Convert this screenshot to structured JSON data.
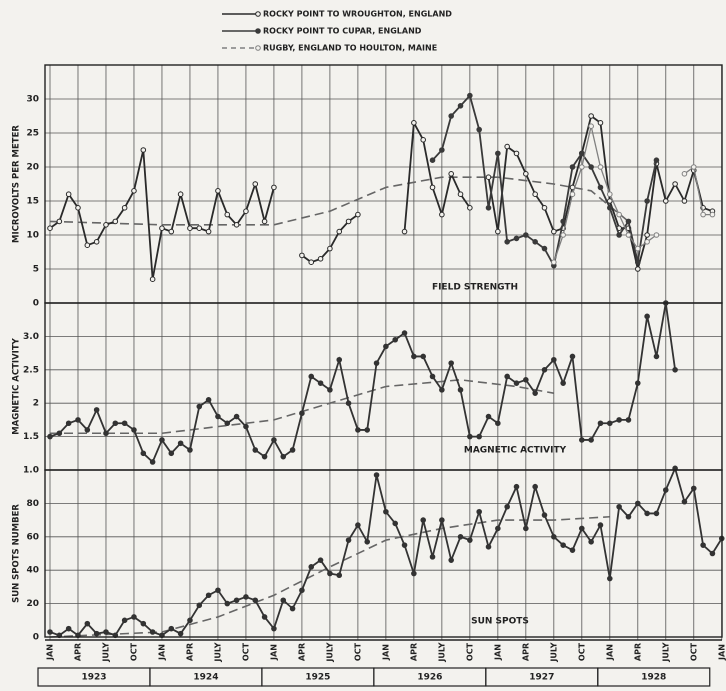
{
  "chart_data": [
    {
      "type": "line",
      "ylabel": "MICROVOLTS PER METER",
      "annotation": "FIELD STRENGTH",
      "ylim": [
        0,
        35
      ],
      "yticks": [
        0,
        5,
        10,
        15,
        20,
        25,
        30
      ],
      "grid": true,
      "legend": "top",
      "series": [
        {
          "name": "ROCKY POINT TO WROUGHTON, ENGLAND",
          "color": "#2a2a2a",
          "style": "solid-open",
          "values": [
            11,
            12,
            16,
            14,
            8.5,
            9,
            11.5,
            12,
            14,
            16.5,
            22.5,
            3.5,
            11,
            10.5,
            16,
            11,
            11,
            10.5,
            16.5,
            13,
            11.5,
            13.5,
            17.5,
            12,
            17,
            null,
            null,
            7,
            6,
            6.5,
            8,
            10.5,
            12,
            13,
            null,
            null,
            null,
            null,
            10.5,
            26.5,
            24,
            17,
            13,
            19,
            16,
            14,
            null,
            18.5,
            10.5,
            23,
            22,
            19,
            16,
            14,
            10.5,
            11,
            17,
            22,
            27.5,
            26.5,
            15,
            11,
            11,
            5,
            10,
            20.5,
            15,
            17.5,
            15,
            19.5,
            14,
            13.5,
            null
          ]
        },
        {
          "name": "ROCKY POINT TO CUPAR, ENGLAND",
          "color": "#3a3a3a",
          "style": "solid-filled",
          "values": [
            null,
            null,
            null,
            null,
            null,
            null,
            null,
            null,
            null,
            null,
            null,
            null,
            null,
            null,
            null,
            null,
            null,
            null,
            null,
            null,
            null,
            null,
            null,
            null,
            null,
            null,
            null,
            null,
            null,
            null,
            null,
            null,
            null,
            null,
            null,
            null,
            null,
            null,
            null,
            null,
            null,
            21,
            22.5,
            27.5,
            29,
            30.5,
            25.5,
            14,
            22,
            9,
            9.5,
            10,
            9,
            8,
            5.5,
            12,
            20,
            22,
            20,
            17,
            14,
            10,
            12,
            6,
            15,
            21,
            null,
            null,
            null,
            null,
            null,
            null,
            null
          ]
        },
        {
          "name": "RUGBY, ENGLAND TO HOULTON, MAINE",
          "color": "#808080",
          "style": "dashed-open",
          "values": [
            null,
            null,
            null,
            null,
            null,
            null,
            null,
            null,
            null,
            null,
            null,
            null,
            null,
            null,
            null,
            null,
            null,
            null,
            null,
            null,
            null,
            null,
            null,
            null,
            null,
            null,
            null,
            null,
            null,
            null,
            null,
            null,
            null,
            null,
            null,
            null,
            null,
            null,
            null,
            null,
            null,
            null,
            null,
            null,
            null,
            null,
            null,
            null,
            null,
            null,
            null,
            null,
            null,
            null,
            6,
            10,
            16,
            20,
            26,
            20,
            16,
            13,
            10,
            8,
            9,
            10,
            null,
            null,
            19,
            20,
            13,
            13,
            null
          ]
        }
      ],
      "trend": {
        "x": [
          0,
          12,
          24,
          30,
          36,
          42,
          48,
          54,
          58,
          62
        ],
        "values": [
          12,
          11.5,
          11.5,
          13.5,
          17,
          18.5,
          18.5,
          17.5,
          16.5,
          12
        ],
        "color": "#666666"
      }
    },
    {
      "type": "line",
      "ylabel": "MAGNETIC ACTIVITY",
      "annotation": "MAGNETIC ACTIVITY",
      "ylim": [
        1.0,
        3.5
      ],
      "yticks": [
        {
          "value": 1.0,
          "label": "1.0"
        },
        1.5,
        2.0,
        2.5,
        {
          "value": 3.0,
          "label": "3.0"
        }
      ],
      "grid": true,
      "series": [
        {
          "color": "#333333",
          "style": "solid-filled",
          "values": [
            1.5,
            1.55,
            1.7,
            1.75,
            1.6,
            1.9,
            1.55,
            1.7,
            1.7,
            1.6,
            1.25,
            1.12,
            1.45,
            1.25,
            1.4,
            1.3,
            1.95,
            2.05,
            1.8,
            1.7,
            1.8,
            1.65,
            1.3,
            1.2,
            1.45,
            1.2,
            1.3,
            1.85,
            2.4,
            2.3,
            2.2,
            2.65,
            2.0,
            1.6,
            1.6,
            2.6,
            2.85,
            2.95,
            3.05,
            2.7,
            2.7,
            2.4,
            2.2,
            2.6,
            2.2,
            1.5,
            1.5,
            1.8,
            1.7,
            2.4,
            2.3,
            2.35,
            2.15,
            2.5,
            2.65,
            2.3,
            2.7,
            1.45,
            1.45,
            1.7,
            1.7,
            1.75,
            1.75,
            2.3,
            3.3,
            2.7,
            3.5,
            2.5,
            null,
            null,
            null,
            null,
            null
          ]
        }
      ],
      "trend": {
        "x": [
          0,
          12,
          24,
          30,
          36,
          44,
          50,
          54
        ],
        "values": [
          1.55,
          1.55,
          1.75,
          2.0,
          2.25,
          2.35,
          2.25,
          2.15
        ],
        "color": "#666666"
      }
    },
    {
      "type": "line",
      "ylabel": "SUN SPOTS NUMBER",
      "annotation": "SUN SPOTS",
      "ylim": [
        0,
        100
      ],
      "yticks": [
        0,
        20,
        40,
        60,
        80
      ],
      "grid": true,
      "categories": [
        "JAN",
        null,
        null,
        "APR",
        null,
        null,
        "JULY",
        null,
        null,
        "OCT",
        null,
        null,
        "JAN",
        null,
        null,
        "APR",
        null,
        null,
        "JULY",
        null,
        null,
        "OCT",
        null,
        null,
        "JAN",
        null,
        null,
        "APR",
        null,
        null,
        "JULY",
        null,
        null,
        "OCT",
        null,
        null,
        "JAN",
        null,
        null,
        "APR",
        null,
        null,
        "JULY",
        null,
        null,
        "OCT",
        null,
        null,
        "JAN",
        null,
        null,
        "APR",
        null,
        null,
        "JULY",
        null,
        null,
        "OCT",
        null,
        null,
        "JAN",
        null,
        null,
        "APR",
        null,
        null,
        "JULY",
        null,
        null,
        "OCT",
        null,
        null,
        "JAN"
      ],
      "years": [
        "1923",
        "1924",
        "1925",
        "1926",
        "1927",
        "1928"
      ],
      "series": [
        {
          "color": "#333333",
          "style": "solid-filled",
          "values": [
            3,
            1,
            5,
            1,
            8,
            2,
            3,
            1,
            10,
            12,
            8,
            3,
            1,
            5,
            2,
            10,
            19,
            25,
            28,
            20,
            22,
            24,
            22,
            12,
            5,
            22,
            17,
            28,
            42,
            46,
            38,
            37,
            58,
            67,
            57,
            97,
            75,
            68,
            55,
            38,
            70,
            48,
            70,
            46,
            60,
            58,
            75,
            54,
            65,
            78,
            90,
            65,
            90,
            73,
            60,
            55,
            52,
            65,
            57,
            67,
            35,
            78,
            72,
            80,
            74,
            74,
            88,
            101,
            81,
            89,
            55,
            50,
            59
          ]
        }
      ],
      "trend": {
        "x": [
          0,
          12,
          18,
          24,
          30,
          36,
          42,
          48,
          54,
          60
        ],
        "values": [
          0,
          3,
          12,
          25,
          42,
          58,
          65,
          70,
          70,
          72
        ],
        "color": "#666666"
      }
    }
  ]
}
